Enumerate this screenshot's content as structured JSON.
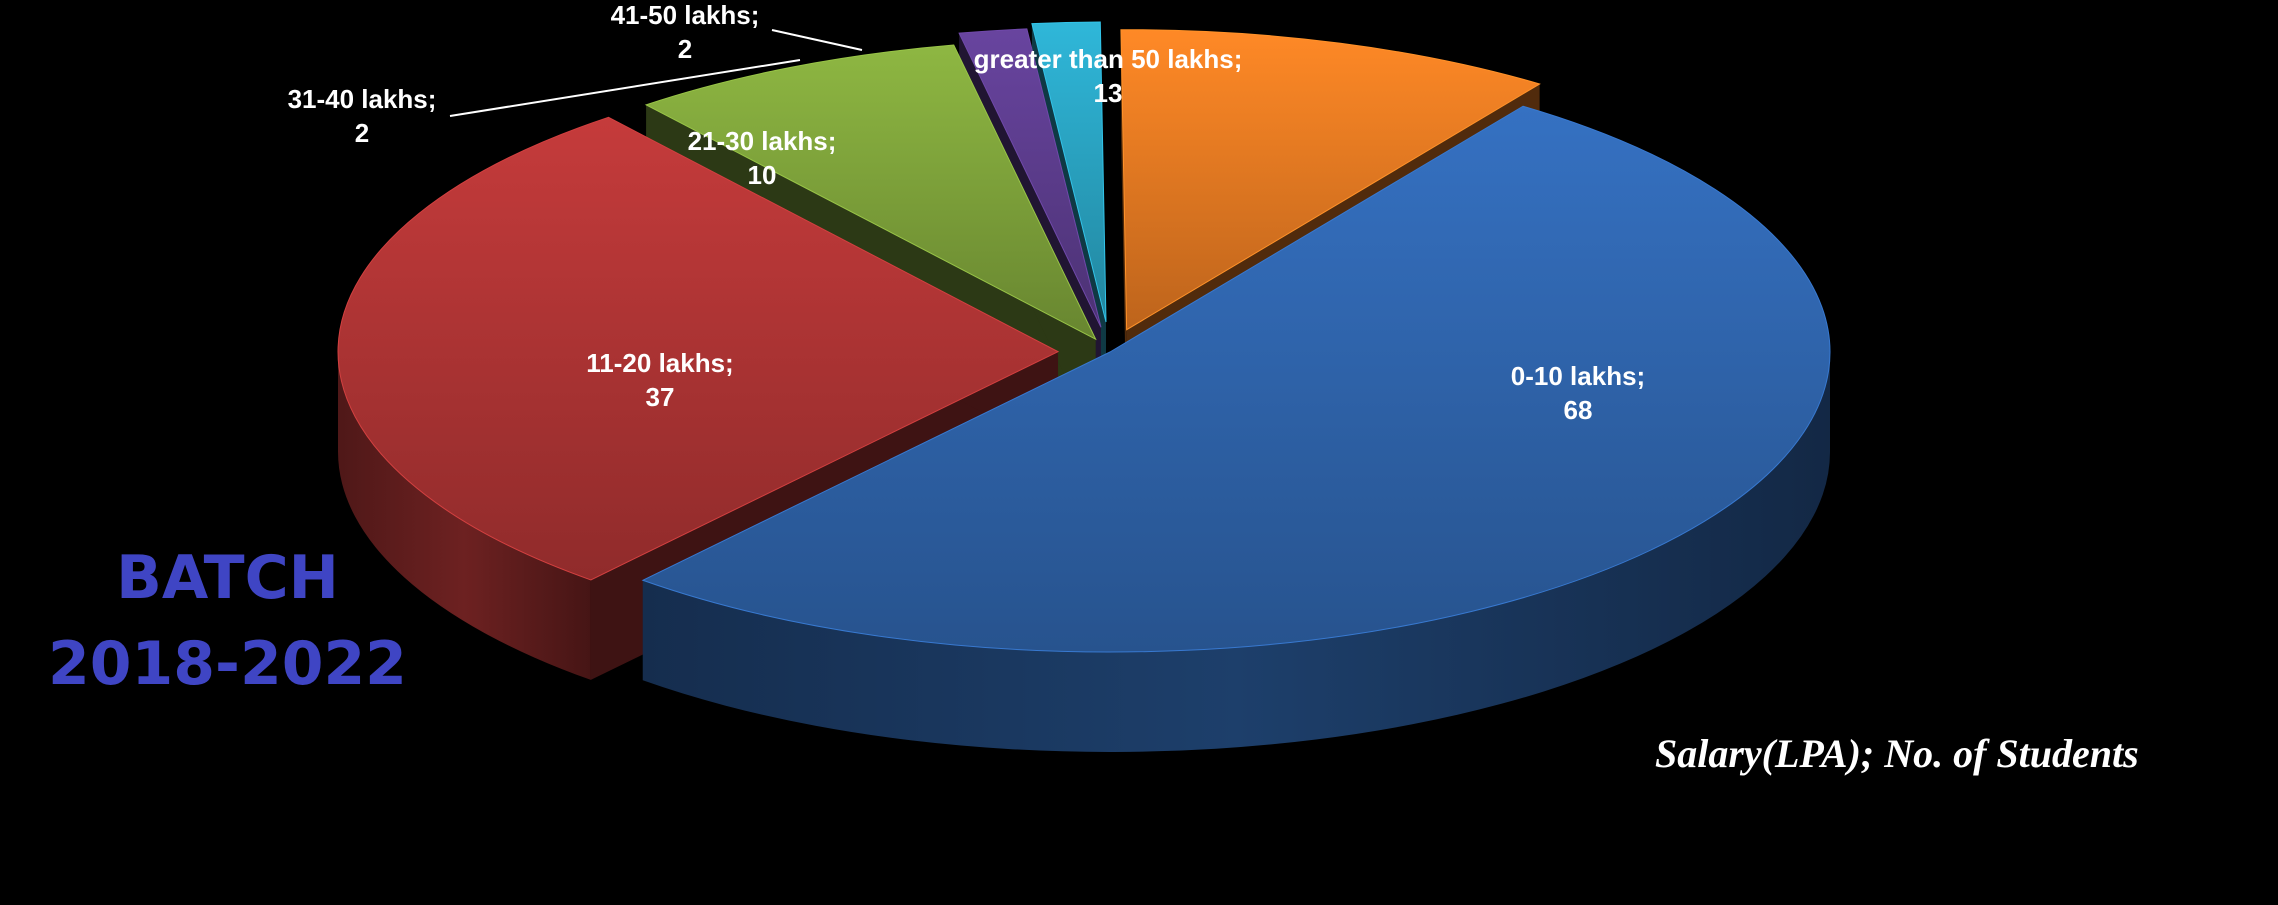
{
  "batch": {
    "line1": "BATCH",
    "line2": "2018-2022"
  },
  "caption": "Salary(LPA); No. of Students",
  "chart_data": {
    "type": "pie",
    "style": "3d-exploded",
    "categories": [
      "0-10 lakhs",
      "11-20 lakhs",
      "21-30 lakhs",
      "31-40 lakhs",
      "41-50 lakhs",
      "greater than 50 lakhs"
    ],
    "values": [
      68,
      37,
      10,
      2,
      2,
      13
    ],
    "colors": [
      "#2f65ad",
      "#b03535",
      "#7fa33b",
      "#5d3d8e",
      "#2aa3c2",
      "#e77a22"
    ],
    "data_labels": [
      {
        "name": "0-10 lakhs;",
        "value": "68"
      },
      {
        "name": "11-20 lakhs;",
        "value": "37"
      },
      {
        "name": "21-30 lakhs;",
        "value": "10"
      },
      {
        "name": "31-40 lakhs;",
        "value": "2"
      },
      {
        "name": "41-50 lakhs;",
        "value": "2"
      },
      {
        "name": "greater than 50 lakhs;",
        "value": "13"
      }
    ],
    "legend": "none"
  }
}
